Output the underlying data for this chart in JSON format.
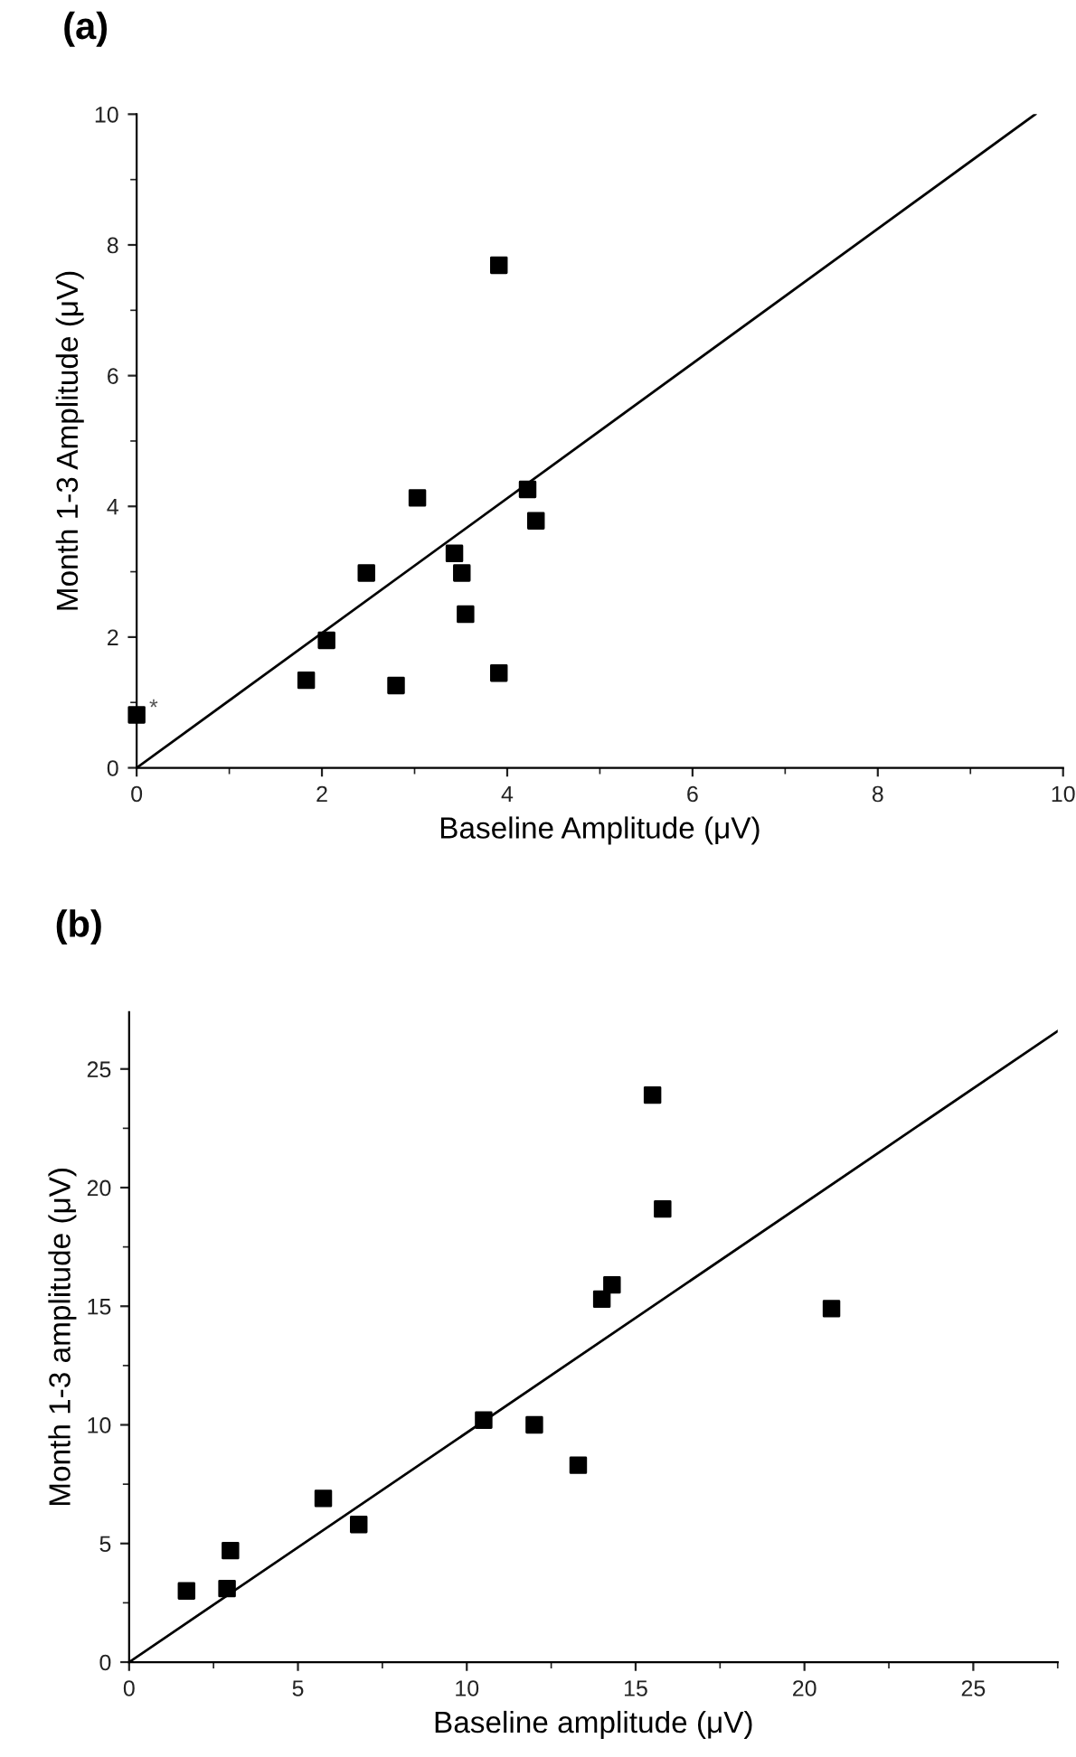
{
  "chart_data": [
    {
      "type": "scatter",
      "title": "(a)",
      "xlabel": "Baseline Amplitude (μV)",
      "ylabel": "Month 1-3 Amplitude (μV)",
      "xlim": [
        0,
        10
      ],
      "ylim": [
        0,
        10
      ],
      "xticks": [
        0,
        2,
        4,
        6,
        8,
        10
      ],
      "yticks": [
        0,
        2,
        4,
        6,
        8,
        10
      ],
      "grid": false,
      "marker": "square",
      "annotations": [
        {
          "text": "*",
          "x": 0,
          "y": 0.81
        }
      ],
      "series": [
        {
          "color": "#000000",
          "x": [
            0,
            1.83,
            2.05,
            2.48,
            2.8,
            3.03,
            3.43,
            3.51,
            3.55,
            3.91,
            3.91,
            4.22,
            4.31
          ],
          "values": [
            0.81,
            1.34,
            1.95,
            2.98,
            1.26,
            4.13,
            3.28,
            2.98,
            2.35,
            7.69,
            1.45,
            4.26,
            3.78
          ]
        },
        {
          "type": "line",
          "color": "#000000",
          "marker": "none",
          "line_style": "solid",
          "x": [
            0,
            9.7
          ],
          "values": [
            0,
            10
          ]
        }
      ]
    },
    {
      "type": "scatter",
      "title": "(b)",
      "xlabel": "Baseline amplitude (μV)",
      "ylabel": "Month 1-3 amplitude (μV)",
      "xlim": [
        0,
        27.5
      ],
      "ylim": [
        0,
        27.4
      ],
      "xticks": [
        0,
        5,
        10,
        15,
        20,
        25
      ],
      "yticks": [
        0,
        5,
        10,
        15,
        20,
        25
      ],
      "grid": false,
      "marker": "square",
      "series": [
        {
          "color": "#000000",
          "x": [
            1.7,
            2.9,
            3.0,
            5.75,
            6.8,
            10.5,
            12.0,
            13.3,
            14.0,
            14.3,
            15.5,
            15.8,
            20.8
          ],
          "values": [
            3.0,
            3.1,
            4.7,
            6.9,
            5.8,
            10.2,
            10.0,
            8.3,
            15.3,
            15.9,
            23.9,
            19.1,
            14.9
          ]
        },
        {
          "type": "line",
          "color": "#000000",
          "marker": "none",
          "line_style": "solid",
          "x": [
            0,
            27.5
          ],
          "values": [
            0,
            26.6
          ]
        }
      ]
    }
  ]
}
